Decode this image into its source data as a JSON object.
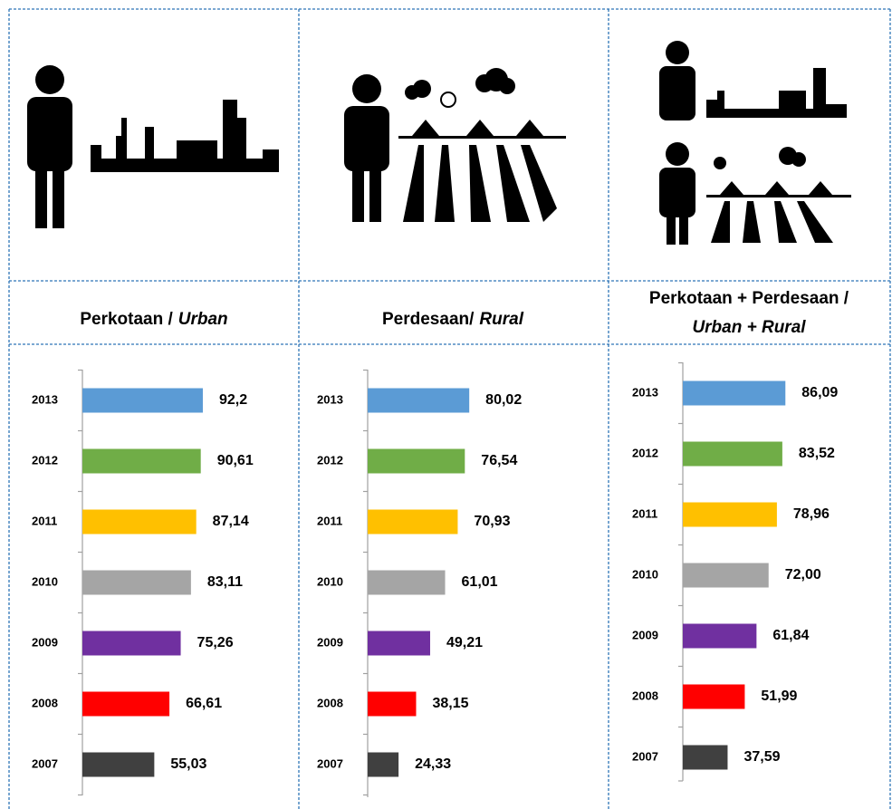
{
  "chart_data": [
    {
      "type": "bar",
      "orientation": "horizontal",
      "title": {
        "text": "Perkotaan /",
        "italic": "Urban"
      },
      "categories": [
        "2013",
        "2012",
        "2011",
        "2010",
        "2009",
        "2008",
        "2007"
      ],
      "values": [
        92.2,
        90.61,
        87.14,
        83.11,
        75.26,
        66.61,
        55.03
      ],
      "value_labels": [
        "92,2",
        "90,61",
        "87,14",
        "83,11",
        "75,26",
        "66,61",
        "55,03"
      ],
      "colors": [
        "#5b9bd5",
        "#70ad47",
        "#ffc000",
        "#a5a5a5",
        "#7030a0",
        "#ff0000",
        "#404040"
      ],
      "xlim": [
        0,
        104
      ]
    },
    {
      "type": "bar",
      "orientation": "horizontal",
      "title": {
        "text": "Perdesaan/",
        "italic": "Rural"
      },
      "categories": [
        "2013",
        "2012",
        "2011",
        "2010",
        "2009",
        "2008",
        "2007"
      ],
      "values": [
        80.02,
        76.54,
        70.93,
        61.01,
        49.21,
        38.15,
        24.33
      ],
      "value_labels": [
        "80,02",
        "76,54",
        "70,93",
        "61,01",
        "49,21",
        "38,15",
        "24,33"
      ],
      "colors": [
        "#5b9bd5",
        "#70ad47",
        "#ffc000",
        "#a5a5a5",
        "#7030a0",
        "#ff0000",
        "#404040"
      ],
      "xlim": [
        0,
        107
      ]
    },
    {
      "type": "bar",
      "orientation": "horizontal",
      "title": {
        "text": "Perkotaan + Perdesaan /",
        "italic": "Urban + Rural"
      },
      "categories": [
        "2013",
        "2012",
        "2011",
        "2010",
        "2009",
        "2008",
        "2007"
      ],
      "values": [
        86.09,
        83.52,
        78.96,
        72.0,
        61.84,
        51.99,
        37.59
      ],
      "value_labels": [
        "86,09",
        "83,52",
        "78,96",
        "72,00",
        "61,84",
        "51,99",
        "37,59"
      ],
      "colors": [
        "#5b9bd5",
        "#70ad47",
        "#ffc000",
        "#a5a5a5",
        "#7030a0",
        "#ff0000",
        "#404040"
      ],
      "xlim": [
        0,
        114
      ]
    }
  ]
}
